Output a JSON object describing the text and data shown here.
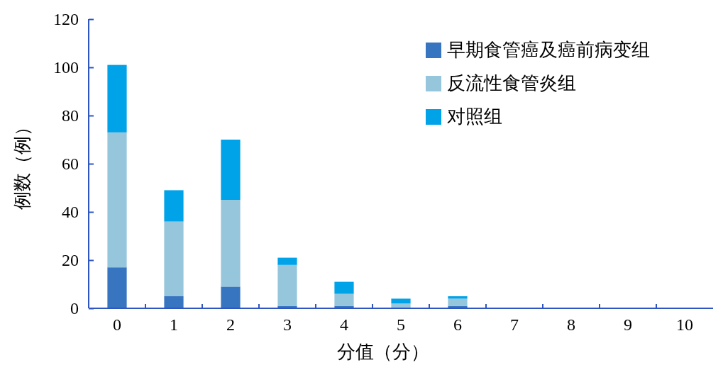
{
  "chart_data": {
    "type": "bar",
    "xlabel": "分值（分）",
    "ylabel": "例数（例）",
    "categories": [
      "0",
      "1",
      "2",
      "3",
      "4",
      "5",
      "6",
      "7",
      "8",
      "9",
      "10"
    ],
    "series": [
      {
        "name": "早期食管癌及癌前病变组",
        "color": "#3875c0",
        "values": [
          17,
          5,
          9,
          1,
          1,
          0,
          1,
          0,
          0,
          0,
          0
        ]
      },
      {
        "name": "反流性食管炎组",
        "color": "#96c6dc",
        "values": [
          56,
          31,
          36,
          17,
          5,
          2,
          3,
          0,
          0,
          0,
          0
        ]
      },
      {
        "name": "对照组",
        "color": "#00a2e8",
        "values": [
          28,
          13,
          25,
          3,
          5,
          2,
          1,
          0,
          0,
          0,
          0
        ]
      }
    ],
    "stacked": true,
    "ylim": [
      0,
      120
    ],
    "yticks": [
      0,
      20,
      40,
      60,
      80,
      100,
      120
    ],
    "grid": false,
    "legend": "top right"
  }
}
